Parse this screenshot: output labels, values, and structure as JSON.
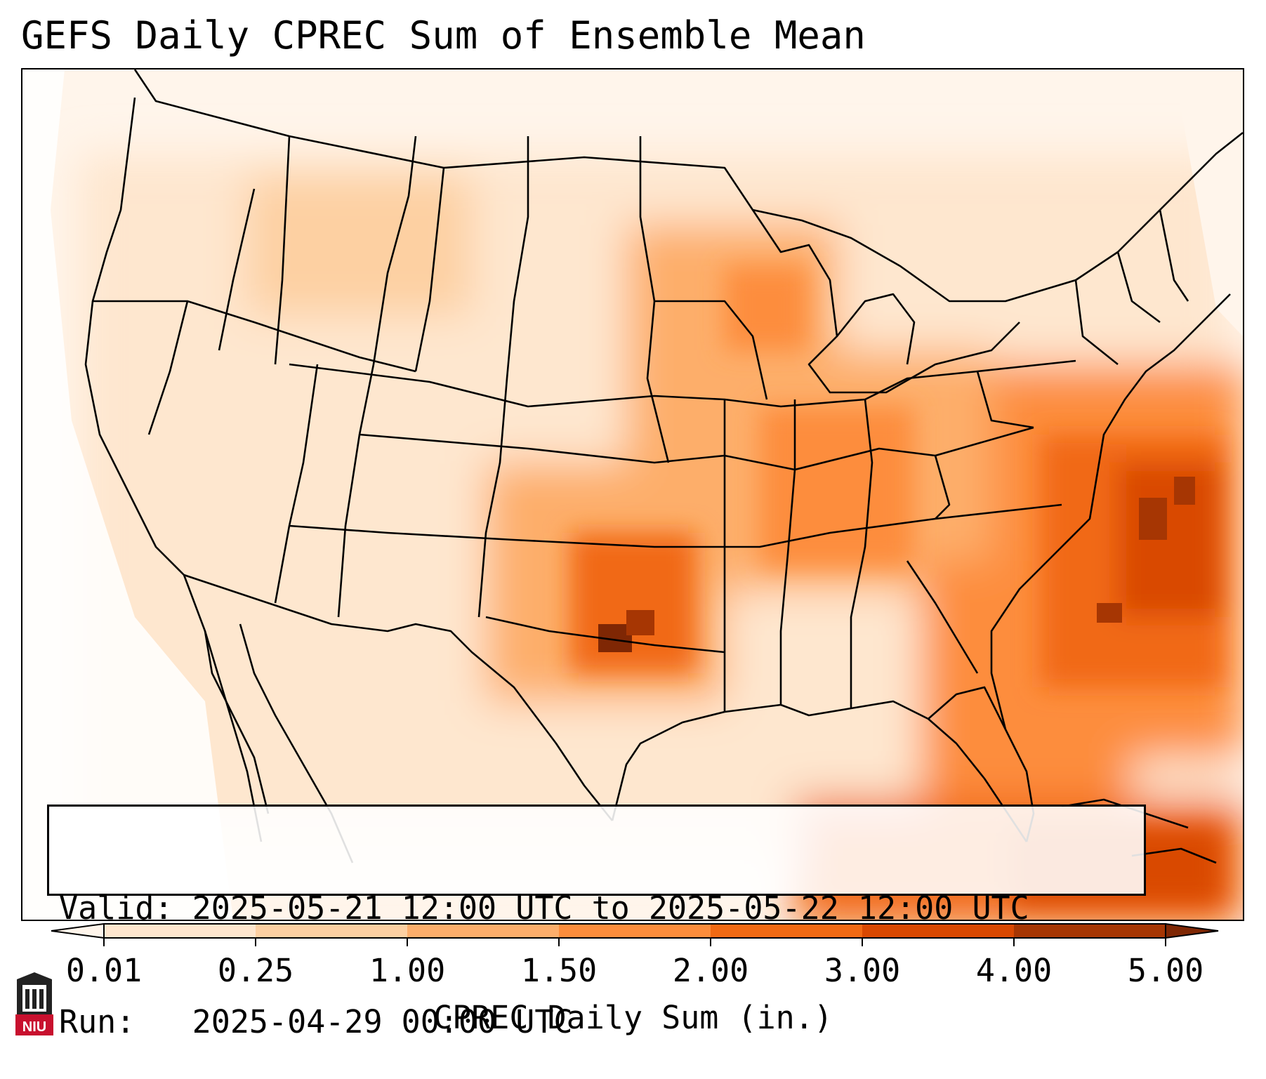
{
  "title": "GEFS Daily CPREC Sum of Ensemble Mean",
  "info": {
    "valid_label": "Valid:",
    "valid_value": "2025-05-21 12:00 UTC to 2025-05-22 12:00 UTC",
    "run_label": "Run:",
    "run_value": "2025-04-29 00:00 UTC"
  },
  "colorbar": {
    "label": "CPREC Daily Sum (in.)",
    "ticks": [
      "0.01",
      "0.25",
      "1.00",
      "1.50",
      "2.00",
      "3.00",
      "4.00",
      "5.00"
    ],
    "colors": [
      "#fff5eb",
      "#fee6ce",
      "#fdd0a2",
      "#fdae6b",
      "#fd8d3c",
      "#f16913",
      "#d94801",
      "#a63603",
      "#7f2704"
    ],
    "extend": "both"
  },
  "logo": {
    "text": "NIU",
    "color": "#c8102e"
  },
  "map": {
    "region": "Contiguous United States",
    "projection": "Lambert Conformal",
    "variable": "Convective precipitation daily sum",
    "heavy_precip_areas": [
      "Oklahoma/North Texas",
      "Western Atlantic off the Carolinas",
      "Florida",
      "Upper Midwest"
    ]
  }
}
